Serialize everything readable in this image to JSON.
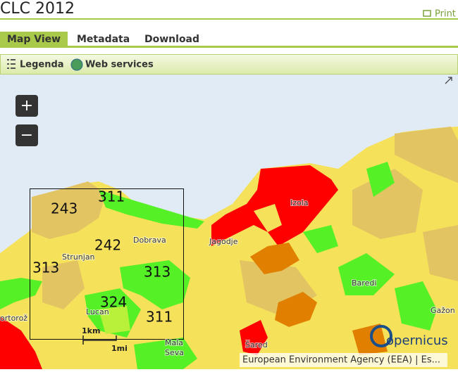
{
  "header": {
    "title": "CLC 2012",
    "print": "Print"
  },
  "tabs": [
    "Map View",
    "Metadata",
    "Download"
  ],
  "toolbar": [
    "Legenda",
    "Web services"
  ],
  "map": {
    "zoom": [
      "+",
      "−"
    ],
    "codes": [
      "243",
      "311",
      "242",
      "313",
      "313",
      "324",
      "311"
    ],
    "places": [
      "Izola",
      "Jagodje",
      "Dobrava",
      "Strunjan",
      "Baredi",
      "Lucan",
      "Gažon",
      "ortorož",
      "Mala",
      "Seva",
      "Šared"
    ],
    "scale": [
      "1km",
      "1mi"
    ],
    "attribution": "European Environment Agency (EEA) | Es...",
    "logo": "opernicus"
  }
}
